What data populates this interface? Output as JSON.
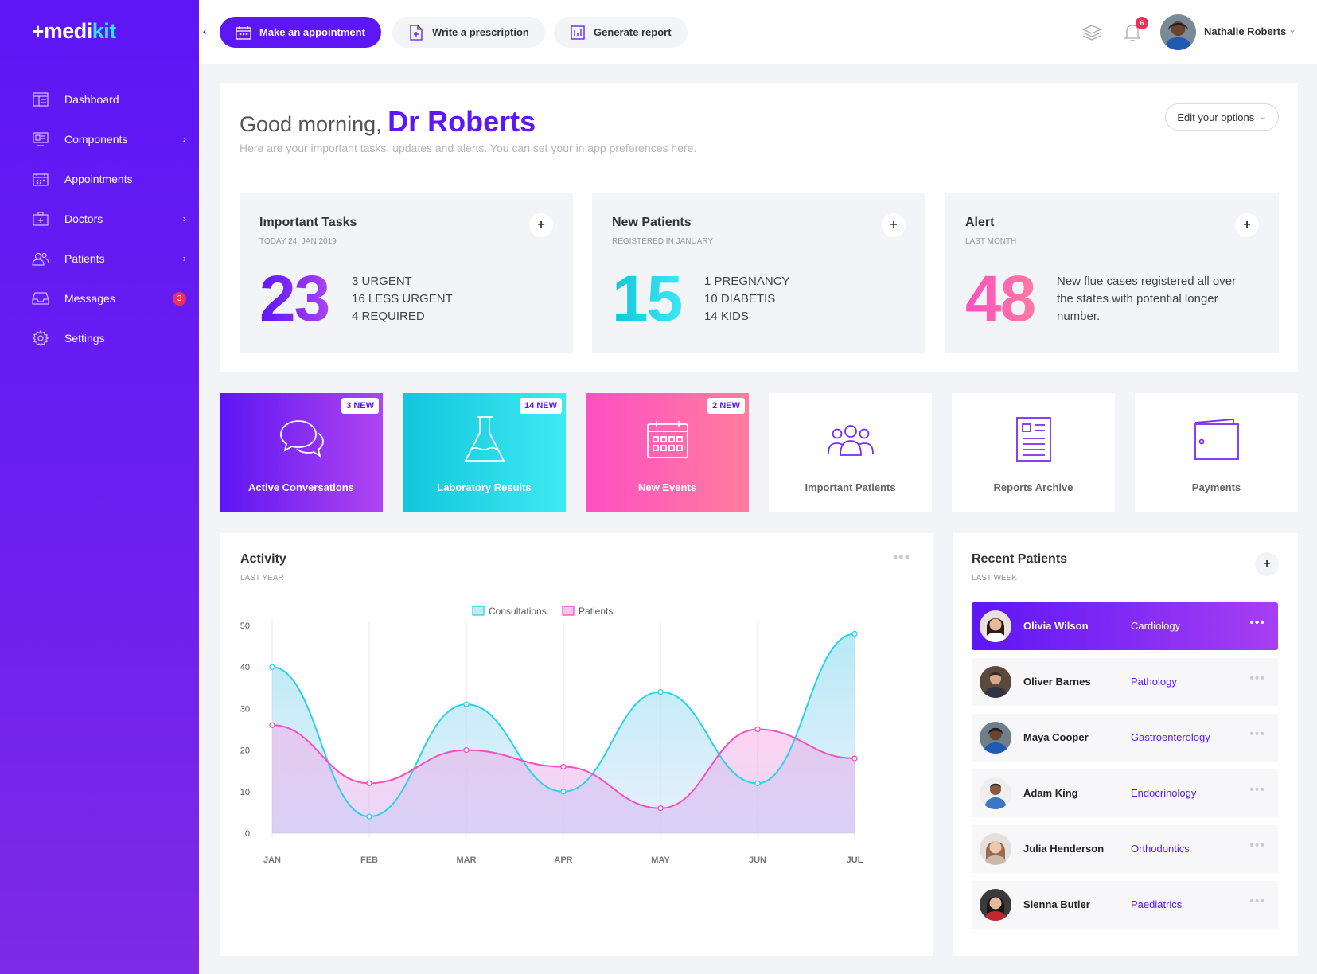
{
  "brand": {
    "plus": "+",
    "name_a": "medi",
    "name_b": "kit"
  },
  "sidebar": {
    "items": [
      {
        "label": "Dashboard",
        "icon": "dashboard-icon"
      },
      {
        "label": "Components",
        "icon": "components-icon",
        "chevron": "›"
      },
      {
        "label": "Appointments",
        "icon": "calendar-icon"
      },
      {
        "label": "Doctors",
        "icon": "doctor-case-icon",
        "chevron": "›"
      },
      {
        "label": "Patients",
        "icon": "users-icon",
        "chevron": "›"
      },
      {
        "label": "Messages",
        "icon": "inbox-icon",
        "badge": "3"
      },
      {
        "label": "Settings",
        "icon": "gear-icon"
      }
    ]
  },
  "topbar": {
    "collapse": "‹",
    "appointment": "Make an appointment",
    "prescription": "Write a prescription",
    "report": "Generate report",
    "notif_count": "6",
    "user_name": "Nathalie Roberts",
    "user_chevron": "⌄"
  },
  "welcome": {
    "greeting": "Good morning,",
    "name": "Dr Roberts",
    "subtitle": "Here are your important tasks, updates and alerts. You can set your in app preferences here.",
    "edit_label": "Edit your options",
    "edit_chevron": "⌄"
  },
  "stats": [
    {
      "title": "Important Tasks",
      "sub": "TODAY 24, JAN 2019",
      "value": "23",
      "lines": [
        "3 URGENT",
        "16 LESS URGENT",
        "4 REQUIRED"
      ],
      "plus": "+"
    },
    {
      "title": "New Patients",
      "sub": "REGISTERED IN JANUARY",
      "value": "15",
      "lines": [
        "1 PREGNANCY",
        "10 DIABETIS",
        "14 KIDS"
      ],
      "plus": "+"
    },
    {
      "title": "Alert",
      "sub": "LAST MONTH",
      "value": "48",
      "lines": [
        "New flue cases registered all over",
        "the states with potential longer",
        "number."
      ],
      "plus": "+"
    }
  ],
  "tiles": [
    {
      "label": "Active Conversations",
      "badge": "3 NEW",
      "icon": "chat-bubbles-icon"
    },
    {
      "label": "Laboratory Results",
      "badge": "14 NEW",
      "icon": "flask-icon"
    },
    {
      "label": "New Events",
      "badge": "2 NEW",
      "icon": "calendar-icon"
    },
    {
      "label": "Important Patients",
      "icon": "users-group-icon"
    },
    {
      "label": "Reports Archive",
      "icon": "document-icon"
    },
    {
      "label": "Payments",
      "icon": "wallet-icon"
    }
  ],
  "activity": {
    "title": "Activity",
    "sub": "LAST YEAR",
    "dots": "•••"
  },
  "chart_data": {
    "type": "area",
    "x": [
      "JAN",
      "FEB",
      "MAR",
      "APR",
      "MAY",
      "JUN",
      "JUL"
    ],
    "series": [
      {
        "name": "Consultations",
        "values": [
          40,
          4,
          31,
          10,
          34,
          12,
          48
        ],
        "color": "#2ad4e6"
      },
      {
        "name": "Patients",
        "values": [
          26,
          12,
          20,
          16,
          6,
          25,
          18
        ],
        "color": "#f54fc3"
      }
    ],
    "yticks": [
      "0",
      "10",
      "20",
      "30",
      "40",
      "50"
    ],
    "ylim": [
      0,
      50
    ],
    "legend_position": "top-center",
    "grid": "vertical"
  },
  "recent": {
    "title": "Recent Patients",
    "sub": "LAST WEEK",
    "plus": "+",
    "dots": "•••",
    "patients": [
      {
        "name": "Olivia Wilson",
        "dept": "Cardiology"
      },
      {
        "name": "Oliver Barnes",
        "dept": "Pathology"
      },
      {
        "name": "Maya Cooper",
        "dept": "Gastroenterology"
      },
      {
        "name": "Adam King",
        "dept": "Endocrinology"
      },
      {
        "name": "Julia Henderson",
        "dept": "Orthodontics"
      },
      {
        "name": "Sienna Butler",
        "dept": "Paediatrics"
      }
    ]
  }
}
